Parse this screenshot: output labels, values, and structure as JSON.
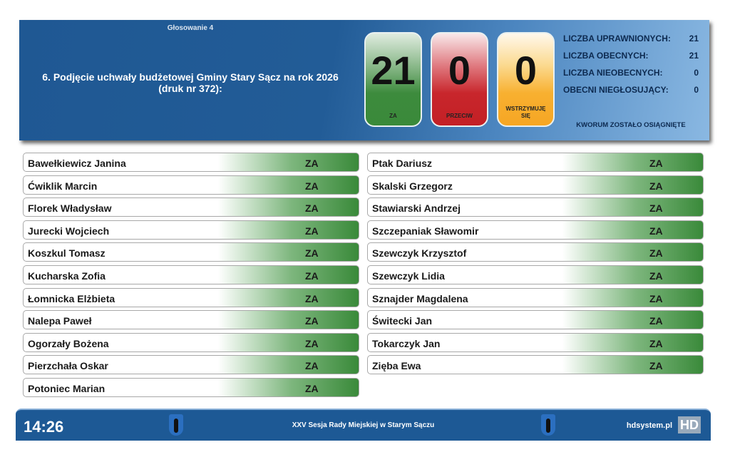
{
  "header": {
    "vote_label": "Głosowanie 4",
    "title_line1": "6. Podjęcie uchwały budżetowej Gminy Stary Sącz na rok 2026",
    "title_line2": "(druk nr 372):"
  },
  "tally": {
    "za": {
      "value": "21",
      "label": "ZA"
    },
    "przeciw": {
      "value": "0",
      "label": "PRZECIW"
    },
    "wstrzymuje": {
      "value": "0",
      "label1": "WSTRZYMUJĘ",
      "label2": "SIĘ"
    }
  },
  "stats": [
    {
      "label": "LICZBA UPRAWNIONYCH:",
      "value": "21"
    },
    {
      "label": "LICZBA OBECNYCH:",
      "value": "21"
    },
    {
      "label": "LICZBA NIEOBECNYCH:",
      "value": "0"
    },
    {
      "label": "OBECNI NIEGŁOSUJĄCY:",
      "value": "0"
    }
  ],
  "kworum": "KWORUM ZOSTAŁO OSIĄGNIĘTE",
  "colors": {
    "za": "#3a8a3a",
    "przeciw": "#c8262c",
    "wstrzymuje": "#f6a624",
    "header": "#1f5893"
  },
  "left_votes": [
    {
      "name": "Bawełkiewicz Janina",
      "vote": "ZA"
    },
    {
      "name": "Ćwiklik Marcin",
      "vote": "ZA"
    },
    {
      "name": "Florek Władysław",
      "vote": "ZA"
    },
    {
      "name": "Jurecki Wojciech",
      "vote": "ZA"
    },
    {
      "name": "Koszkul Tomasz",
      "vote": "ZA"
    },
    {
      "name": "Kucharska Zofia",
      "vote": "ZA"
    },
    {
      "name": "Łomnicka Elżbieta",
      "vote": "ZA"
    },
    {
      "name": "Nalepa Paweł",
      "vote": "ZA"
    },
    {
      "name": "Ogorzały Bożena",
      "vote": "ZA"
    },
    {
      "name": "Pierzchała Oskar",
      "vote": "ZA"
    },
    {
      "name": "Potoniec Marian",
      "vote": "ZA"
    }
  ],
  "right_votes": [
    {
      "name": "Ptak Dariusz",
      "vote": "ZA"
    },
    {
      "name": "Skalski Grzegorz",
      "vote": "ZA"
    },
    {
      "name": "Stawiarski Andrzej",
      "vote": "ZA"
    },
    {
      "name": "Szczepaniak Sławomir",
      "vote": "ZA"
    },
    {
      "name": "Szewczyk Krzysztof",
      "vote": "ZA"
    },
    {
      "name": "Szewczyk Lidia",
      "vote": "ZA"
    },
    {
      "name": "Sznajder Magdalena",
      "vote": "ZA"
    },
    {
      "name": "Świtecki Jan",
      "vote": "ZA"
    },
    {
      "name": "Tokarczyk Jan",
      "vote": "ZA"
    },
    {
      "name": "Zięba Ewa",
      "vote": "ZA"
    }
  ],
  "footer": {
    "time": "14:26",
    "session": "XXV Sesja Rady Miejskiej w Starym Sączu",
    "site": "hdsystem.pl",
    "logo": "HD"
  }
}
